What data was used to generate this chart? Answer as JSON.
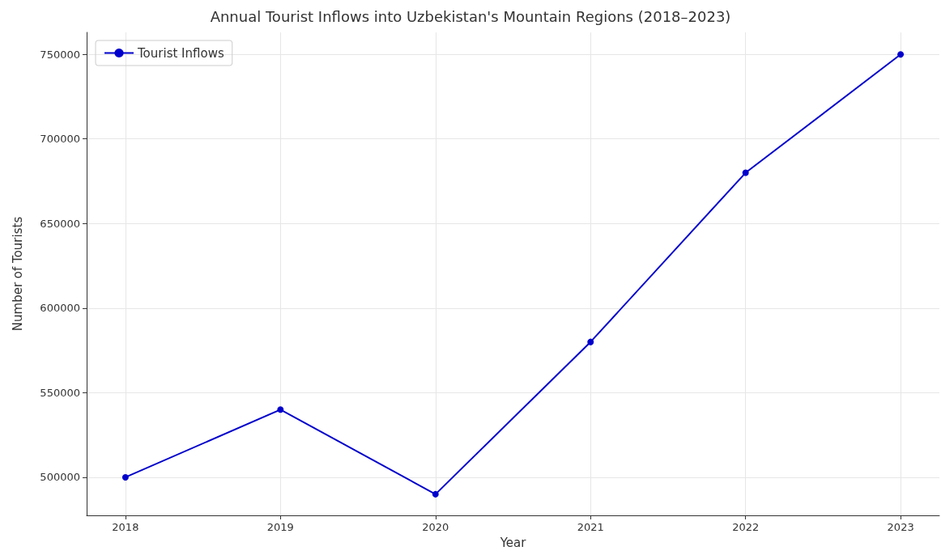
{
  "chart_data": {
    "type": "line",
    "title": "Annual Tourist Inflows into Uzbekistan's Mountain Regions (2018–2023)",
    "xlabel": "Year",
    "ylabel": "Number of Tourists",
    "x": [
      2018,
      2019,
      2020,
      2021,
      2022,
      2023
    ],
    "series": [
      {
        "name": "Tourist Inflows",
        "color": "#0000cc",
        "values": [
          500000,
          540000,
          490000,
          580000,
          680000,
          750000
        ]
      }
    ],
    "xlim": [
      2017.75,
      2023.25
    ],
    "xticks": [
      2018,
      2019,
      2020,
      2021,
      2022,
      2023
    ],
    "ylim": [
      477500,
      763000
    ],
    "yticks": [
      500000,
      550000,
      600000,
      650000,
      700000,
      750000
    ],
    "grid": true,
    "legend": "top left",
    "marker": "circle",
    "line_style": "solid"
  }
}
